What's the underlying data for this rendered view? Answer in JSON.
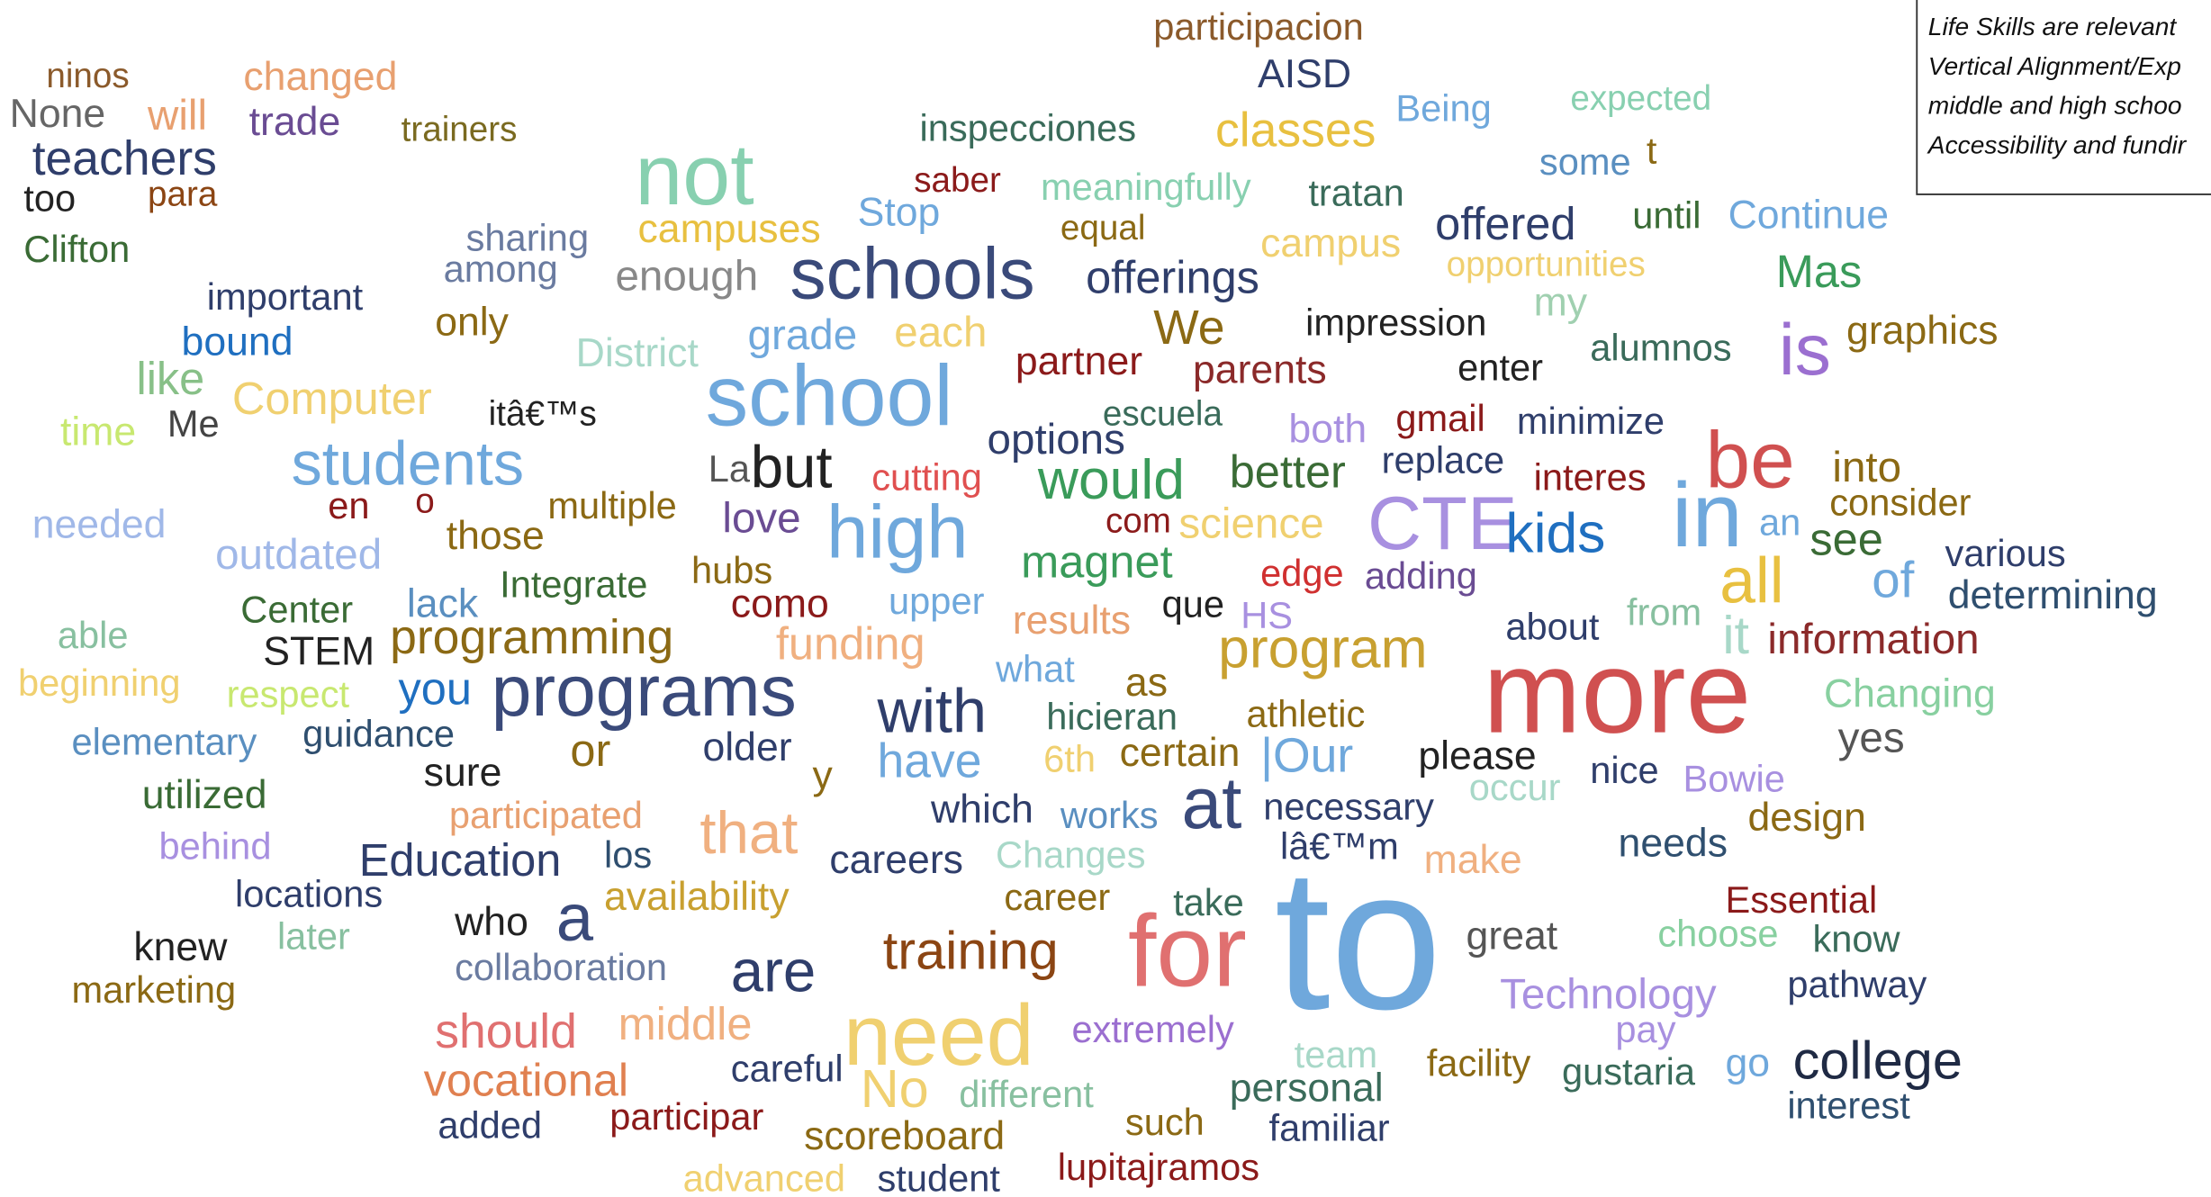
{
  "words": [
    "ninos",
    "changed",
    "None",
    "will",
    "trade",
    "trainers",
    "teachers",
    "too",
    "para",
    "Clifton",
    "participacion",
    "AISD",
    "Being",
    "expected",
    "inspecciones",
    "classes",
    "some",
    "t",
    "not",
    "saber",
    "meaningfully",
    "tratan",
    "sharing",
    "Stop",
    "equal",
    "offered",
    "until",
    "Continue",
    "campuses",
    "among",
    "enough",
    "schools",
    "campus",
    "opportunities",
    "Mas",
    "important",
    "offerings",
    "my",
    "graphics",
    "is",
    "bound",
    "only",
    "District",
    "grade",
    "each",
    "We",
    "impression",
    "alumnos",
    "like",
    "Computer",
    "school",
    "partner",
    "parents",
    "enter",
    "time",
    "Me",
    "itâ€™s",
    "escuela",
    "both",
    "gmail",
    "minimize",
    "students",
    "but",
    "options",
    "replace",
    "be",
    "into",
    "La",
    "cutting",
    "would",
    "better",
    "interes",
    "en",
    "o",
    "multiple",
    "love",
    "high",
    "CTE",
    "kids",
    "in",
    "an",
    "consider",
    "needed",
    "com",
    "science",
    "see",
    "outdated",
    "those",
    "various",
    "magnet",
    "all",
    "of",
    "determining",
    "Integrate",
    "hubs",
    "edge",
    "adding",
    "Center",
    "lack",
    "como",
    "upper",
    "results",
    "que",
    "HS",
    "from",
    "about",
    "able",
    "STEM",
    "programming",
    "funding",
    "program",
    "more",
    "it",
    "information",
    "beginning",
    "respect",
    "you",
    "programs",
    "what",
    "as",
    "Changing",
    "with",
    "hicieran",
    "athletic",
    "elementary",
    "guidance",
    "yes",
    "or",
    "older",
    "y",
    "have",
    "6th",
    "certain",
    "|Our",
    "please",
    "nice",
    "Bowie",
    "occur",
    "utilized",
    "sure",
    "at",
    "necessary",
    "participated",
    "which",
    "works",
    "that",
    "design",
    "behind",
    "Education",
    "los",
    "careers",
    "Changes",
    "lâ€™m",
    "make",
    "needs",
    "locations",
    "availability",
    "career",
    "take",
    "Essential",
    "to",
    "for",
    "a",
    "who",
    "knew",
    "later",
    "choose",
    "know",
    "great",
    "training",
    "are",
    "collaboration",
    "marketing",
    "Technology",
    "pathway",
    "need",
    "should",
    "middle",
    "extremely",
    "pay",
    "college",
    "team",
    "careful",
    "vocational",
    "No",
    "facility",
    "gustaria",
    "go",
    "personal",
    "different",
    "interest",
    "added",
    "participar",
    "scoreboard",
    "such",
    "familiar",
    "lupitajramos",
    "advanced",
    "student"
  ],
  "note": {
    "lines": [
      "Life Skills are relevant",
      "Vertical Alignment/Exp",
      "middle and high schoo",
      "Accessibility and fundir"
    ]
  }
}
